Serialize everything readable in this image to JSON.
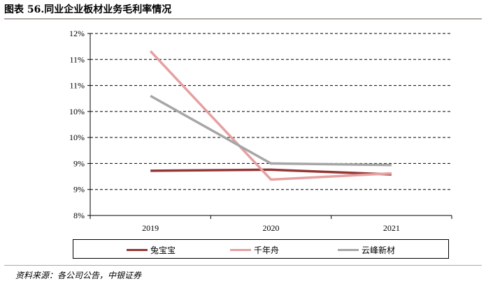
{
  "header": {
    "title": "图表 56.同业企业板材业务毛利率情况"
  },
  "footer": {
    "source": "资料来源：各公司公告，中银证券"
  },
  "chart_data": {
    "type": "line",
    "title": "",
    "categories": [
      "2019",
      "2020",
      "2021"
    ],
    "y_tick_labels": [
      "8%",
      "9%",
      "9%",
      "10%",
      "10%",
      "11%",
      "11%",
      "12%"
    ],
    "ylim": [
      8,
      11.5
    ],
    "grid": "horizontal-dashed",
    "legend_position": "bottom",
    "series": [
      {
        "name": "兔宝宝",
        "color": "#953735",
        "values": [
          8.86,
          8.88,
          8.79
        ]
      },
      {
        "name": "千年舟",
        "color": "#e6a0a0",
        "values": [
          11.16,
          8.69,
          8.81
        ]
      },
      {
        "name": "云峰新材",
        "color": "#a6a6a6",
        "values": [
          10.3,
          9.0,
          8.97
        ]
      }
    ]
  }
}
